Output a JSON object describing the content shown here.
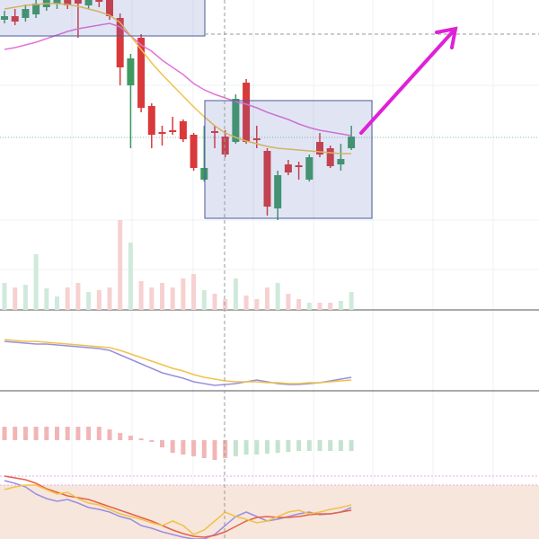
{
  "chart_data": [
    {
      "type": "candlestick",
      "ylim": [
        0,
        345
      ],
      "up_color": "#3f9a62",
      "down_color": "#d9393a",
      "open": [
        323,
        327,
        325,
        329,
        337,
        341,
        345,
        345,
        339,
        345,
        345,
        325,
        250,
        303,
        227,
        198,
        200,
        210,
        195,
        145,
        199,
        193,
        187,
        253,
        191,
        177,
        113,
        162,
        161,
        145,
        187,
        180,
        162,
        180
      ],
      "close": [
        327,
        321,
        335,
        341,
        345,
        345,
        339,
        341,
        345,
        343,
        327,
        270,
        280,
        225,
        195,
        196,
        198,
        190,
        158,
        158,
        197,
        173,
        235,
        187,
        189,
        115,
        150,
        153,
        159,
        170,
        173,
        160,
        168,
        193
      ],
      "high": [
        333,
        335,
        340,
        345,
        345,
        345,
        345,
        345,
        345,
        345,
        345,
        330,
        285,
        307,
        230,
        205,
        215,
        212,
        197,
        205,
        205,
        200,
        240,
        257,
        205,
        180,
        155,
        167,
        165,
        173,
        197,
        183,
        185,
        205
      ],
      "low": [
        319,
        317,
        321,
        325,
        333,
        335,
        335,
        303,
        335,
        337,
        323,
        250,
        180,
        220,
        180,
        183,
        195,
        187,
        155,
        143,
        180,
        170,
        185,
        185,
        180,
        105,
        100,
        150,
        145,
        143,
        170,
        158,
        155,
        178
      ],
      "series": [
        {
          "color": "#e573d8",
          "values": [
            290,
            292,
            295,
            298,
            302,
            306,
            310,
            313,
            315,
            317,
            319,
            315,
            305,
            295,
            288,
            278,
            270,
            262,
            252,
            245,
            240,
            236,
            232,
            229,
            225,
            220,
            216,
            212,
            207,
            203,
            200,
            198,
            196,
            194
          ]
        },
        {
          "color": "#f0c24a",
          "values": [
            335,
            337,
            339,
            340,
            341,
            341,
            340,
            338,
            335,
            332,
            328,
            320,
            305,
            290,
            275,
            262,
            250,
            238,
            226,
            215,
            205,
            197,
            192,
            188,
            185,
            182,
            180,
            179,
            178,
            177,
            176,
            175,
            174,
            174
          ]
        }
      ]
    },
    {
      "type": "bar",
      "ylim": [
        0,
        345
      ],
      "values": [
        30,
        25,
        28,
        62,
        24,
        15,
        25,
        30,
        20,
        22,
        25,
        100,
        75,
        32,
        25,
        30,
        25,
        35,
        40,
        22,
        18,
        12,
        35,
        16,
        12,
        25,
        30,
        18,
        12,
        8,
        8,
        8,
        10,
        20
      ],
      "colors": [
        "#cfeadb",
        "#f7d0d0",
        "#cfeadb",
        "#cfeadb",
        "#cfeadb",
        "#cfeadb",
        "#f7d0d0",
        "#f7d0d0",
        "#cfeadb",
        "#f7d0d0",
        "#f7d0d0",
        "#f7d0d0",
        "#cfeadb",
        "#f7d0d0",
        "#f7d0d0",
        "#f7d0d0",
        "#f7d0d0",
        "#f7d0d0",
        "#f7d0d0",
        "#cfeadb",
        "#f7d0d0",
        "#f7d0d0",
        "#cfeadb",
        "#f7d0d0",
        "#f7d0d0",
        "#f7d0d0",
        "#cfeadb",
        "#f7d0d0",
        "#f7d0d0",
        "#cfeadb",
        "#f7d0d0",
        "#f7d0d0",
        "#cfeadb",
        "#cfeadb"
      ]
    },
    {
      "type": "line",
      "ylim": [
        0,
        90
      ],
      "series": [
        {
          "color": "#9a8ee0",
          "values": [
            55,
            54,
            53,
            52,
            52,
            51,
            50,
            49,
            48,
            47,
            45,
            40,
            35,
            30,
            25,
            20,
            17,
            14,
            10,
            8,
            6,
            7,
            8,
            10,
            12,
            10,
            8,
            7,
            7,
            8,
            9,
            11,
            13,
            15
          ]
        },
        {
          "color": "#f0c24a",
          "values": [
            57,
            56,
            55,
            55,
            54,
            53,
            52,
            51,
            50,
            49,
            48,
            45,
            41,
            37,
            33,
            29,
            25,
            22,
            18,
            15,
            13,
            11,
            10,
            10,
            10,
            9,
            9,
            8,
            8,
            9,
            9,
            10,
            11,
            12
          ]
        }
      ]
    },
    {
      "type": "bar",
      "ylim": [
        -30,
        55
      ],
      "values": [
        15,
        15,
        15,
        15,
        15,
        15,
        15,
        15,
        15,
        15,
        12,
        8,
        5,
        2,
        -2,
        -8,
        -14,
        -16,
        -18,
        -20,
        -22,
        -20,
        -18,
        -16,
        -16,
        -15,
        -14,
        -13,
        -12,
        -12,
        -12,
        -12,
        -12,
        -12
      ],
      "colors": [
        "#f2b5b5",
        "#f2b5b5",
        "#f2b5b5",
        "#f2b5b5",
        "#f2b5b5",
        "#f2b5b5",
        "#f2b5b5",
        "#f2b5b5",
        "#f2b5b5",
        "#f2b5b5",
        "#f2b5b5",
        "#f2b5b5",
        "#f2b5b5",
        "#f2b5b5",
        "#f2b5b5",
        "#f2b5b5",
        "#f2b5b5",
        "#f2b5b5",
        "#f2b5b5",
        "#f2b5b5",
        "#f2b5b5",
        "#f2b5b5",
        "#c4e3cf",
        "#c4e3cf",
        "#c4e3cf",
        "#c4e3cf",
        "#c4e3cf",
        "#c4e3cf",
        "#c4e3cf",
        "#c4e3cf",
        "#c4e3cf",
        "#c4e3cf",
        "#c4e3cf",
        "#c4e3cf"
      ]
    },
    {
      "type": "line",
      "ylim": [
        0,
        80
      ],
      "series": [
        {
          "color": "#9a8ee0",
          "values": [
            65,
            62,
            58,
            50,
            45,
            42,
            44,
            40,
            35,
            33,
            30,
            25,
            22,
            15,
            12,
            8,
            5,
            2,
            0,
            0,
            5,
            15,
            25,
            30,
            25,
            20,
            22,
            25,
            28,
            30,
            27,
            28,
            30,
            35
          ]
        },
        {
          "color": "#e8604a",
          "values": [
            70,
            68,
            66,
            62,
            56,
            52,
            48,
            46,
            44,
            40,
            36,
            32,
            28,
            24,
            20,
            15,
            10,
            6,
            3,
            2,
            4,
            8,
            14,
            20,
            24,
            25,
            24,
            24,
            25,
            27,
            28,
            28,
            30,
            32
          ]
        },
        {
          "color": "#f0c24a",
          "values": [
            55,
            58,
            60,
            60,
            55,
            50,
            52,
            45,
            40,
            38,
            33,
            28,
            25,
            22,
            18,
            15,
            20,
            15,
            5,
            10,
            20,
            30,
            25,
            22,
            18,
            20,
            25,
            30,
            32,
            28,
            30,
            33,
            35,
            38
          ]
        }
      ]
    }
  ]
}
